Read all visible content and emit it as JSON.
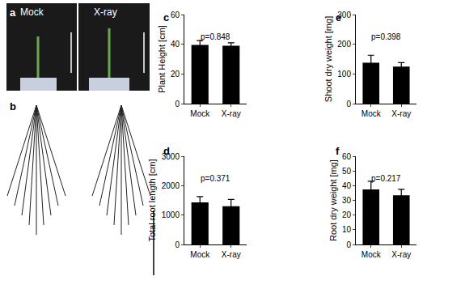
{
  "chart_data": [
    {
      "type": "bar",
      "panel_label": "c",
      "categories": [
        "Mock",
        "X-ray"
      ],
      "values": [
        39.5,
        39
      ],
      "errors": [
        3,
        2
      ],
      "color": "#000000",
      "y_label": "Plant Height [cm]",
      "ylim": [
        0,
        60
      ],
      "yticks": [
        0,
        20,
        40,
        60
      ],
      "annotation": "p=0.848",
      "grid": false
    },
    {
      "type": "bar",
      "panel_label": "d",
      "categories": [
        "Mock",
        "X-ray"
      ],
      "values": [
        1430,
        1300
      ],
      "errors": [
        200,
        230
      ],
      "color": "#000000",
      "y_label": "Total root length [cm]",
      "ylim": [
        0,
        3000
      ],
      "yticks": [
        0,
        1000,
        2000,
        3000
      ],
      "annotation": "p=0.371",
      "grid": false
    },
    {
      "type": "bar",
      "panel_label": "e",
      "categories": [
        "Mock",
        "X-ray"
      ],
      "values": [
        138,
        125
      ],
      "errors": [
        25,
        13
      ],
      "color": "#000000",
      "y_label": "Shoot dry weight [mg]",
      "ylim": [
        0,
        300
      ],
      "yticks": [
        0,
        100,
        200,
        300
      ],
      "annotation": "p=0.398",
      "grid": false
    },
    {
      "type": "bar",
      "panel_label": "f",
      "categories": [
        "Mock",
        "X-ray"
      ],
      "values": [
        37.5,
        33.5
      ],
      "errors": [
        5.5,
        4
      ],
      "color": "#000000",
      "y_label": "Root dry weight [mg]",
      "ylim": [
        0,
        60
      ],
      "yticks": [
        0,
        10,
        20,
        30,
        40,
        50,
        60
      ],
      "annotation": "p=0.217",
      "grid": false
    }
  ],
  "images": [
    {
      "panel_label": "a",
      "texts": [
        "Mock",
        "X-ray"
      ]
    },
    {
      "panel_label": "b"
    }
  ]
}
